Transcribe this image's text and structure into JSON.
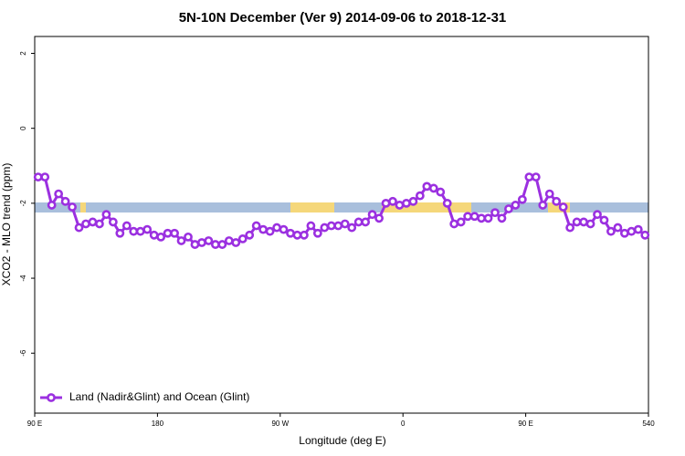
{
  "chart_data": {
    "type": "line",
    "title": "5N-10N December (Ver 9)   2014-09-06 to 2018-12-31",
    "x_label": "Longitude (deg E)",
    "y_label": "XCO2 - MLO trend (ppm)",
    "x": [
      92.5,
      97.5,
      102.5,
      107.5,
      112.5,
      117.5,
      122.5,
      127.5,
      132.5,
      137.5,
      142.5,
      147.5,
      152.5,
      157.5,
      162.5,
      167.5,
      172.5,
      177.5,
      182.5,
      187.5,
      192.5,
      197.5,
      202.5,
      207.5,
      212.5,
      217.5,
      222.5,
      227.5,
      232.5,
      237.5,
      242.5,
      247.5,
      252.5,
      257.5,
      262.5,
      267.5,
      272.5,
      277.5,
      282.5,
      287.5,
      292.5,
      297.5,
      302.5,
      307.5,
      312.5,
      317.5,
      322.5,
      327.5,
      332.5,
      337.5,
      342.5,
      347.5,
      352.5,
      357.5,
      362.5,
      367.5,
      372.5,
      377.5,
      382.5,
      387.5,
      392.5,
      397.5,
      402.5,
      407.5,
      412.5,
      417.5,
      422.5,
      427.5,
      432.5,
      437.5,
      442.5,
      447.5,
      452.5,
      457.5,
      462.5,
      467.5,
      472.5,
      477.5,
      482.5,
      487.5,
      492.5,
      497.5,
      502.5,
      507.5,
      512.5,
      517.5,
      522.5,
      527.5,
      532.5,
      537.5
    ],
    "series": [
      {
        "name": "Land (Nadir&Glint) and Ocean (Glint)",
        "color": "#9b30e0",
        "values": [
          -1.3,
          -1.3,
          -2.05,
          -1.75,
          -1.95,
          -2.1,
          -2.65,
          -2.55,
          -2.5,
          -2.55,
          -2.3,
          -2.5,
          -2.8,
          -2.6,
          -2.75,
          -2.75,
          -2.7,
          -2.85,
          -2.9,
          -2.8,
          -2.8,
          -3.0,
          -2.9,
          -3.1,
          -3.05,
          -3.0,
          -3.1,
          -3.1,
          -3.0,
          -3.05,
          -2.95,
          -2.85,
          -2.6,
          -2.7,
          -2.75,
          -2.65,
          -2.7,
          -2.8,
          -2.85,
          -2.85,
          -2.6,
          -2.8,
          -2.65,
          -2.6,
          -2.6,
          -2.55,
          -2.65,
          -2.5,
          -2.5,
          -2.3,
          -2.4,
          -2.0,
          -1.95,
          -2.05,
          -2.0,
          -1.95,
          -1.8,
          -1.55,
          -1.6,
          -1.7,
          -2.0,
          -2.55,
          -2.5,
          -2.35,
          -2.35,
          -2.4,
          -2.4,
          -2.25,
          -2.4,
          -2.15,
          -2.05,
          -1.9,
          -1.3,
          -1.3,
          -2.05,
          -1.75,
          -1.95,
          -2.1,
          -2.65,
          -2.5,
          -2.5,
          -2.55,
          -2.3,
          -2.45,
          -2.75,
          -2.65,
          -2.8,
          -2.75,
          -2.7,
          -2.85
        ]
      }
    ],
    "xlim": [
      90,
      540
    ],
    "xticks": [
      {
        "value": 90,
        "label": "90 E"
      },
      180,
      {
        "value": 270,
        "label": "90 W"
      },
      {
        "value": 360,
        "label": "0"
      },
      {
        "value": 450,
        "label": "90 E"
      },
      540
    ],
    "ylim": [
      -7.6,
      2.45
    ],
    "yticks": [
      2,
      0,
      -2,
      -4,
      -6
    ],
    "legend": "bottom-left"
  }
}
